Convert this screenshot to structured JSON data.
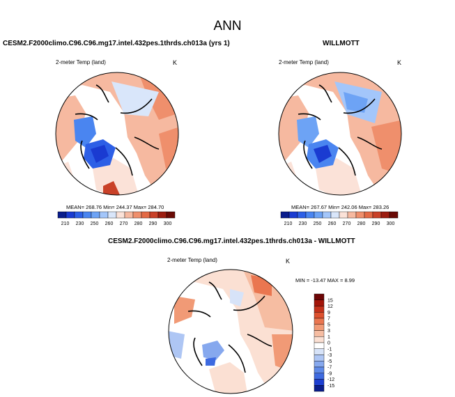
{
  "page": {
    "title": "ANN"
  },
  "colors": {
    "abs_scale": [
      "#0a1d8c",
      "#1a3bd1",
      "#2d5fe6",
      "#4a85f0",
      "#6da3f5",
      "#a3c6fa",
      "#d9e6fa",
      "#fbe2d8",
      "#f6b9a0",
      "#ef8f6c",
      "#e36a45",
      "#c94128",
      "#9c1d10",
      "#6a0a05"
    ],
    "diff_scale": [
      "#0a1d8c",
      "#1d3fd1",
      "#3e6ae0",
      "#5f8ae8",
      "#86a8ee",
      "#aec6f4",
      "#d7e3f8",
      "#ffffff",
      "#fbe0d3",
      "#f6bda2",
      "#f19a76",
      "#ea7650",
      "#dd512f",
      "#c4311b",
      "#a31509",
      "#6d0505"
    ]
  },
  "top_left": {
    "title": "CESM2.F2000climo.C96.C96.mg17.intel.432pes.1thrds.ch013a (yrs 1)",
    "field": "2-meter Temp (land)",
    "units": "K",
    "stats": "MEAN= 268.76  Min= 244.37  Max= 284.70"
  },
  "top_right": {
    "title": "WILLMOTT",
    "field": "2-meter Temp (land)",
    "units": "K",
    "stats": "MEAN= 267.67  Min= 242.06  Max= 283.26"
  },
  "bottom": {
    "title": "CESM2.F2000climo.C96.C96.mg17.intel.432pes.1thrds.ch013a - WILLMOTT",
    "field": "2-meter Temp (land)",
    "units": "K",
    "stats": "MIN = -13.47  MAX =   8.99"
  },
  "chart_data": [
    {
      "type": "heatmap",
      "title": "CESM2.F2000climo.C96.C96.mg17.intel.432pes.1thrds.ch013a (yrs 1)",
      "field": "2-meter Temp (land)",
      "units": "K",
      "projection": "polar stereographic (north)",
      "stats": {
        "mean": 268.76,
        "min": 244.37,
        "max": 284.7
      },
      "colorbar": {
        "orientation": "horizontal",
        "tick_labels": [
          "210",
          "230",
          "250",
          "260",
          "270",
          "280",
          "290",
          "300"
        ]
      }
    },
    {
      "type": "heatmap",
      "title": "WILLMOTT",
      "field": "2-meter Temp (land)",
      "units": "K",
      "projection": "polar stereographic (north)",
      "stats": {
        "mean": 267.67,
        "min": 242.06,
        "max": 283.26
      },
      "colorbar": {
        "orientation": "horizontal",
        "tick_labels": [
          "210",
          "230",
          "250",
          "260",
          "270",
          "280",
          "290",
          "300"
        ]
      }
    },
    {
      "type": "heatmap",
      "title": "CESM2.F2000climo.C96.C96.mg17.intel.432pes.1thrds.ch013a - WILLMOTT",
      "field": "2-meter Temp (land)",
      "units": "K",
      "projection": "polar stereographic (north)",
      "stats": {
        "min": -13.47,
        "max": 8.99
      },
      "colorbar": {
        "orientation": "vertical",
        "tick_labels": [
          "15",
          "12",
          "9",
          "7",
          "5",
          "3",
          "1",
          "0",
          "-1",
          "-3",
          "-5",
          "-7",
          "-9",
          "-12",
          "-15"
        ]
      }
    }
  ]
}
